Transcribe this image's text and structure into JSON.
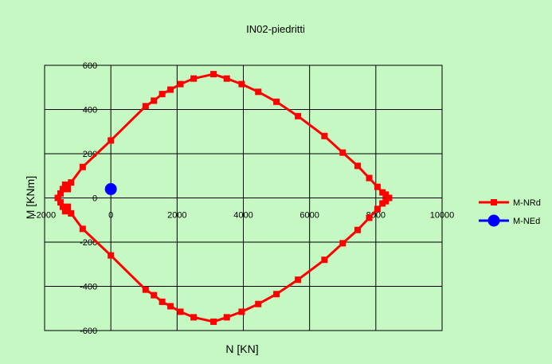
{
  "chart_data": {
    "type": "scatter",
    "title": "IN02-piedritti",
    "xlabel": "N [KN]",
    "ylabel": "M [KNm]",
    "xlim": [
      -2000,
      10000
    ],
    "ylim": [
      -600,
      600
    ],
    "x_ticks": [
      -2000,
      0,
      2000,
      4000,
      6000,
      8000,
      10000
    ],
    "y_ticks": [
      -600,
      -400,
      -200,
      0,
      200,
      400,
      600
    ],
    "grid": true,
    "legend": "right",
    "series": [
      {
        "name": "M-NRd",
        "color": "#ff0000",
        "marker": "square",
        "line": true,
        "x": [
          -1600,
          -1520,
          -1450,
          -1380,
          -1300,
          -1200,
          -850,
          0,
          1050,
          1300,
          1550,
          1800,
          2100,
          2500,
          3100,
          3500,
          3950,
          4450,
          5000,
          5650,
          6450,
          7000,
          7450,
          7800,
          8050,
          8200,
          8300,
          8400,
          8300,
          8200,
          8050,
          7800,
          7450,
          7000,
          6450,
          5650,
          5000,
          4450,
          3950,
          3500,
          3100,
          2500,
          2100,
          1800,
          1550,
          1300,
          1050,
          0,
          -850,
          -1200,
          -1300,
          -1380,
          -1450,
          -1520,
          -1600
        ],
        "y": [
          0,
          20,
          40,
          60,
          40,
          70,
          140,
          260,
          415,
          440,
          470,
          490,
          515,
          540,
          560,
          540,
          515,
          480,
          435,
          370,
          280,
          205,
          145,
          90,
          50,
          25,
          15,
          0,
          -15,
          -25,
          -50,
          -90,
          -145,
          -205,
          -280,
          -370,
          -435,
          -480,
          -515,
          -540,
          -560,
          -540,
          -515,
          -490,
          -470,
          -440,
          -415,
          -260,
          -140,
          -70,
          -40,
          -60,
          -40,
          -20,
          0
        ]
      },
      {
        "name": "M-NEd",
        "color": "#0000ff",
        "marker": "circle",
        "line": false,
        "x": [
          0
        ],
        "y": [
          40
        ]
      }
    ]
  }
}
